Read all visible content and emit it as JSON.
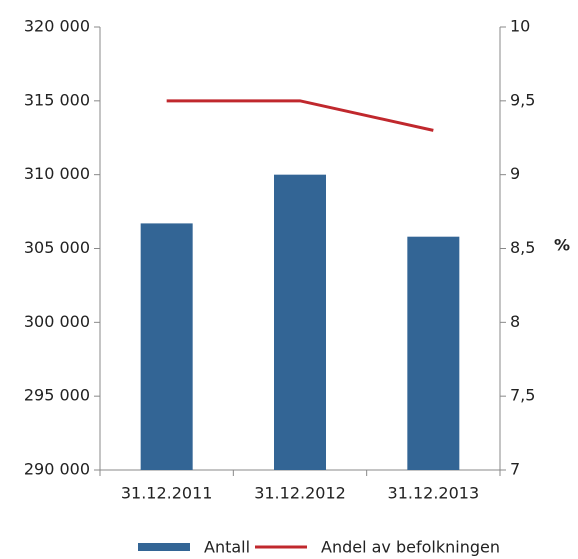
{
  "chart_data": {
    "type": "bar-line",
    "categories": [
      "31.12.2011",
      "31.12.2012",
      "31.12.2013"
    ],
    "series": [
      {
        "name": "Antall",
        "color": "#336595",
        "type": "bar",
        "values": [
          306700,
          310000,
          305800
        ]
      },
      {
        "name": "Andel av befolkningen",
        "color": "#c0282d",
        "type": "line",
        "axis": "y2",
        "values": [
          9.5,
          9.5,
          9.3
        ]
      }
    ],
    "ylim": [
      290000,
      320000
    ],
    "yticks": [
      {
        "value": 290000,
        "label": "290 000"
      },
      {
        "value": 295000,
        "label": "295 000"
      },
      {
        "value": 300000,
        "label": "300 000"
      },
      {
        "value": 305000,
        "label": "305 000"
      },
      {
        "value": 310000,
        "label": "310 000"
      },
      {
        "value": 315000,
        "label": "315 000"
      },
      {
        "value": 320000,
        "label": "320 000"
      }
    ],
    "y2lim": [
      7,
      10
    ],
    "y2ticks": [
      7,
      {
        "value": 7.5,
        "label": "7,5"
      },
      8,
      {
        "value": 8.5,
        "label": "8,5"
      },
      9,
      {
        "value": 9.5,
        "label": "9,5"
      },
      10
    ],
    "y2label": "%",
    "grid": false
  }
}
